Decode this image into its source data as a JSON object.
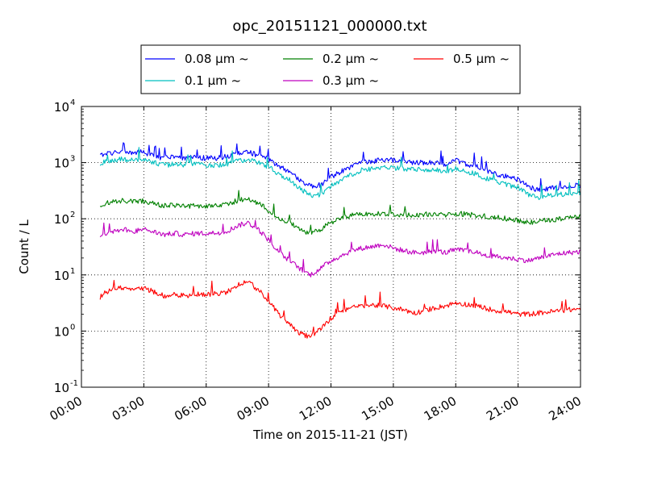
{
  "chart_data": {
    "type": "line",
    "title": "opc_20151121_000000.txt",
    "xlabel": "Time on 2015-11-21 (JST)",
    "ylabel": "Count / L",
    "x_unit": "hours",
    "xlim": [
      0,
      24
    ],
    "yscale": "log",
    "ylim": [
      0.1,
      10000
    ],
    "grid": true,
    "legend_position": "top",
    "x_ticks": [
      "00:00",
      "03:00",
      "06:00",
      "09:00",
      "12:00",
      "15:00",
      "18:00",
      "21:00",
      "24:00"
    ],
    "y_ticks": [
      {
        "base": "10",
        "exp": "-1"
      },
      {
        "base": "10",
        "exp": "0"
      },
      {
        "base": "10",
        "exp": "1"
      },
      {
        "base": "10",
        "exp": "2"
      },
      {
        "base": "10",
        "exp": "3"
      },
      {
        "base": "10",
        "exp": "4"
      }
    ],
    "x": [
      0.9,
      1.0,
      1.5,
      2.0,
      2.5,
      3.0,
      3.5,
      4.0,
      4.5,
      5.0,
      5.5,
      6.0,
      6.5,
      7.0,
      7.5,
      8.0,
      8.5,
      9.0,
      9.5,
      10.0,
      10.5,
      11.0,
      11.5,
      12.0,
      12.5,
      13.0,
      13.5,
      14.0,
      14.5,
      15.0,
      15.5,
      16.0,
      16.5,
      17.0,
      17.5,
      18.0,
      18.5,
      19.0,
      19.5,
      20.0,
      20.5,
      21.0,
      21.5,
      22.0,
      22.5,
      23.0,
      23.5,
      24.0
    ],
    "series": [
      {
        "name": "0.08 μm ~",
        "color": "#0000ff",
        "values": [
          1300,
          1400,
          1500,
          1550,
          1500,
          1550,
          1300,
          1200,
          1250,
          1200,
          1250,
          1200,
          1200,
          1300,
          1450,
          1550,
          1350,
          1150,
          850,
          700,
          500,
          380,
          400,
          560,
          700,
          850,
          1000,
          1050,
          1150,
          1100,
          1050,
          1000,
          1000,
          1000,
          900,
          1100,
          950,
          850,
          700,
          620,
          560,
          500,
          380,
          320,
          350,
          350,
          380,
          400
        ]
      },
      {
        "name": "0.1 μm ~",
        "color": "#00bfbf",
        "values": [
          950,
          1000,
          1100,
          1150,
          1100,
          1150,
          1000,
          900,
          950,
          900,
          950,
          900,
          900,
          950,
          1050,
          1150,
          1000,
          850,
          600,
          500,
          350,
          260,
          270,
          380,
          500,
          620,
          740,
          780,
          850,
          800,
          780,
          750,
          750,
          750,
          680,
          780,
          700,
          620,
          520,
          450,
          400,
          360,
          270,
          240,
          260,
          270,
          280,
          290
        ]
      },
      {
        "name": "0.2 μm ~",
        "color": "#008000",
        "values": [
          170,
          180,
          200,
          210,
          200,
          210,
          185,
          170,
          175,
          165,
          170,
          170,
          170,
          185,
          210,
          230,
          190,
          140,
          100,
          85,
          65,
          55,
          65,
          85,
          100,
          115,
          125,
          120,
          125,
          120,
          118,
          115,
          120,
          120,
          115,
          125,
          120,
          115,
          110,
          105,
          100,
          95,
          85,
          90,
          95,
          100,
          105,
          110
        ]
      },
      {
        "name": "0.3 μm ~",
        "color": "#bf00bf",
        "values": [
          45,
          50,
          60,
          65,
          60,
          65,
          58,
          52,
          55,
          52,
          55,
          55,
          56,
          60,
          75,
          85,
          65,
          42,
          25,
          18,
          13,
          10,
          13,
          18,
          22,
          27,
          30,
          32,
          35,
          30,
          27,
          25,
          25,
          27,
          25,
          28,
          27,
          25,
          22,
          21,
          20,
          19,
          18,
          20,
          22,
          24,
          25,
          26
        ]
      },
      {
        "name": "0.5 μm ~",
        "color": "#ff0000",
        "values": [
          4,
          4.5,
          5.5,
          6,
          5.5,
          5.8,
          5,
          4.2,
          4.5,
          4.2,
          4.5,
          4.5,
          4.6,
          5,
          6.5,
          7.5,
          5.5,
          3.5,
          2,
          1.4,
          0.9,
          0.8,
          1.1,
          1.7,
          2.2,
          2.6,
          2.8,
          2.9,
          2.8,
          2.6,
          2.4,
          2.1,
          2.3,
          2.6,
          2.8,
          3.2,
          3.0,
          2.8,
          2.5,
          2.3,
          2.2,
          2.0,
          2.0,
          2.1,
          2.2,
          2.3,
          2.4,
          2.5
        ]
      }
    ]
  }
}
